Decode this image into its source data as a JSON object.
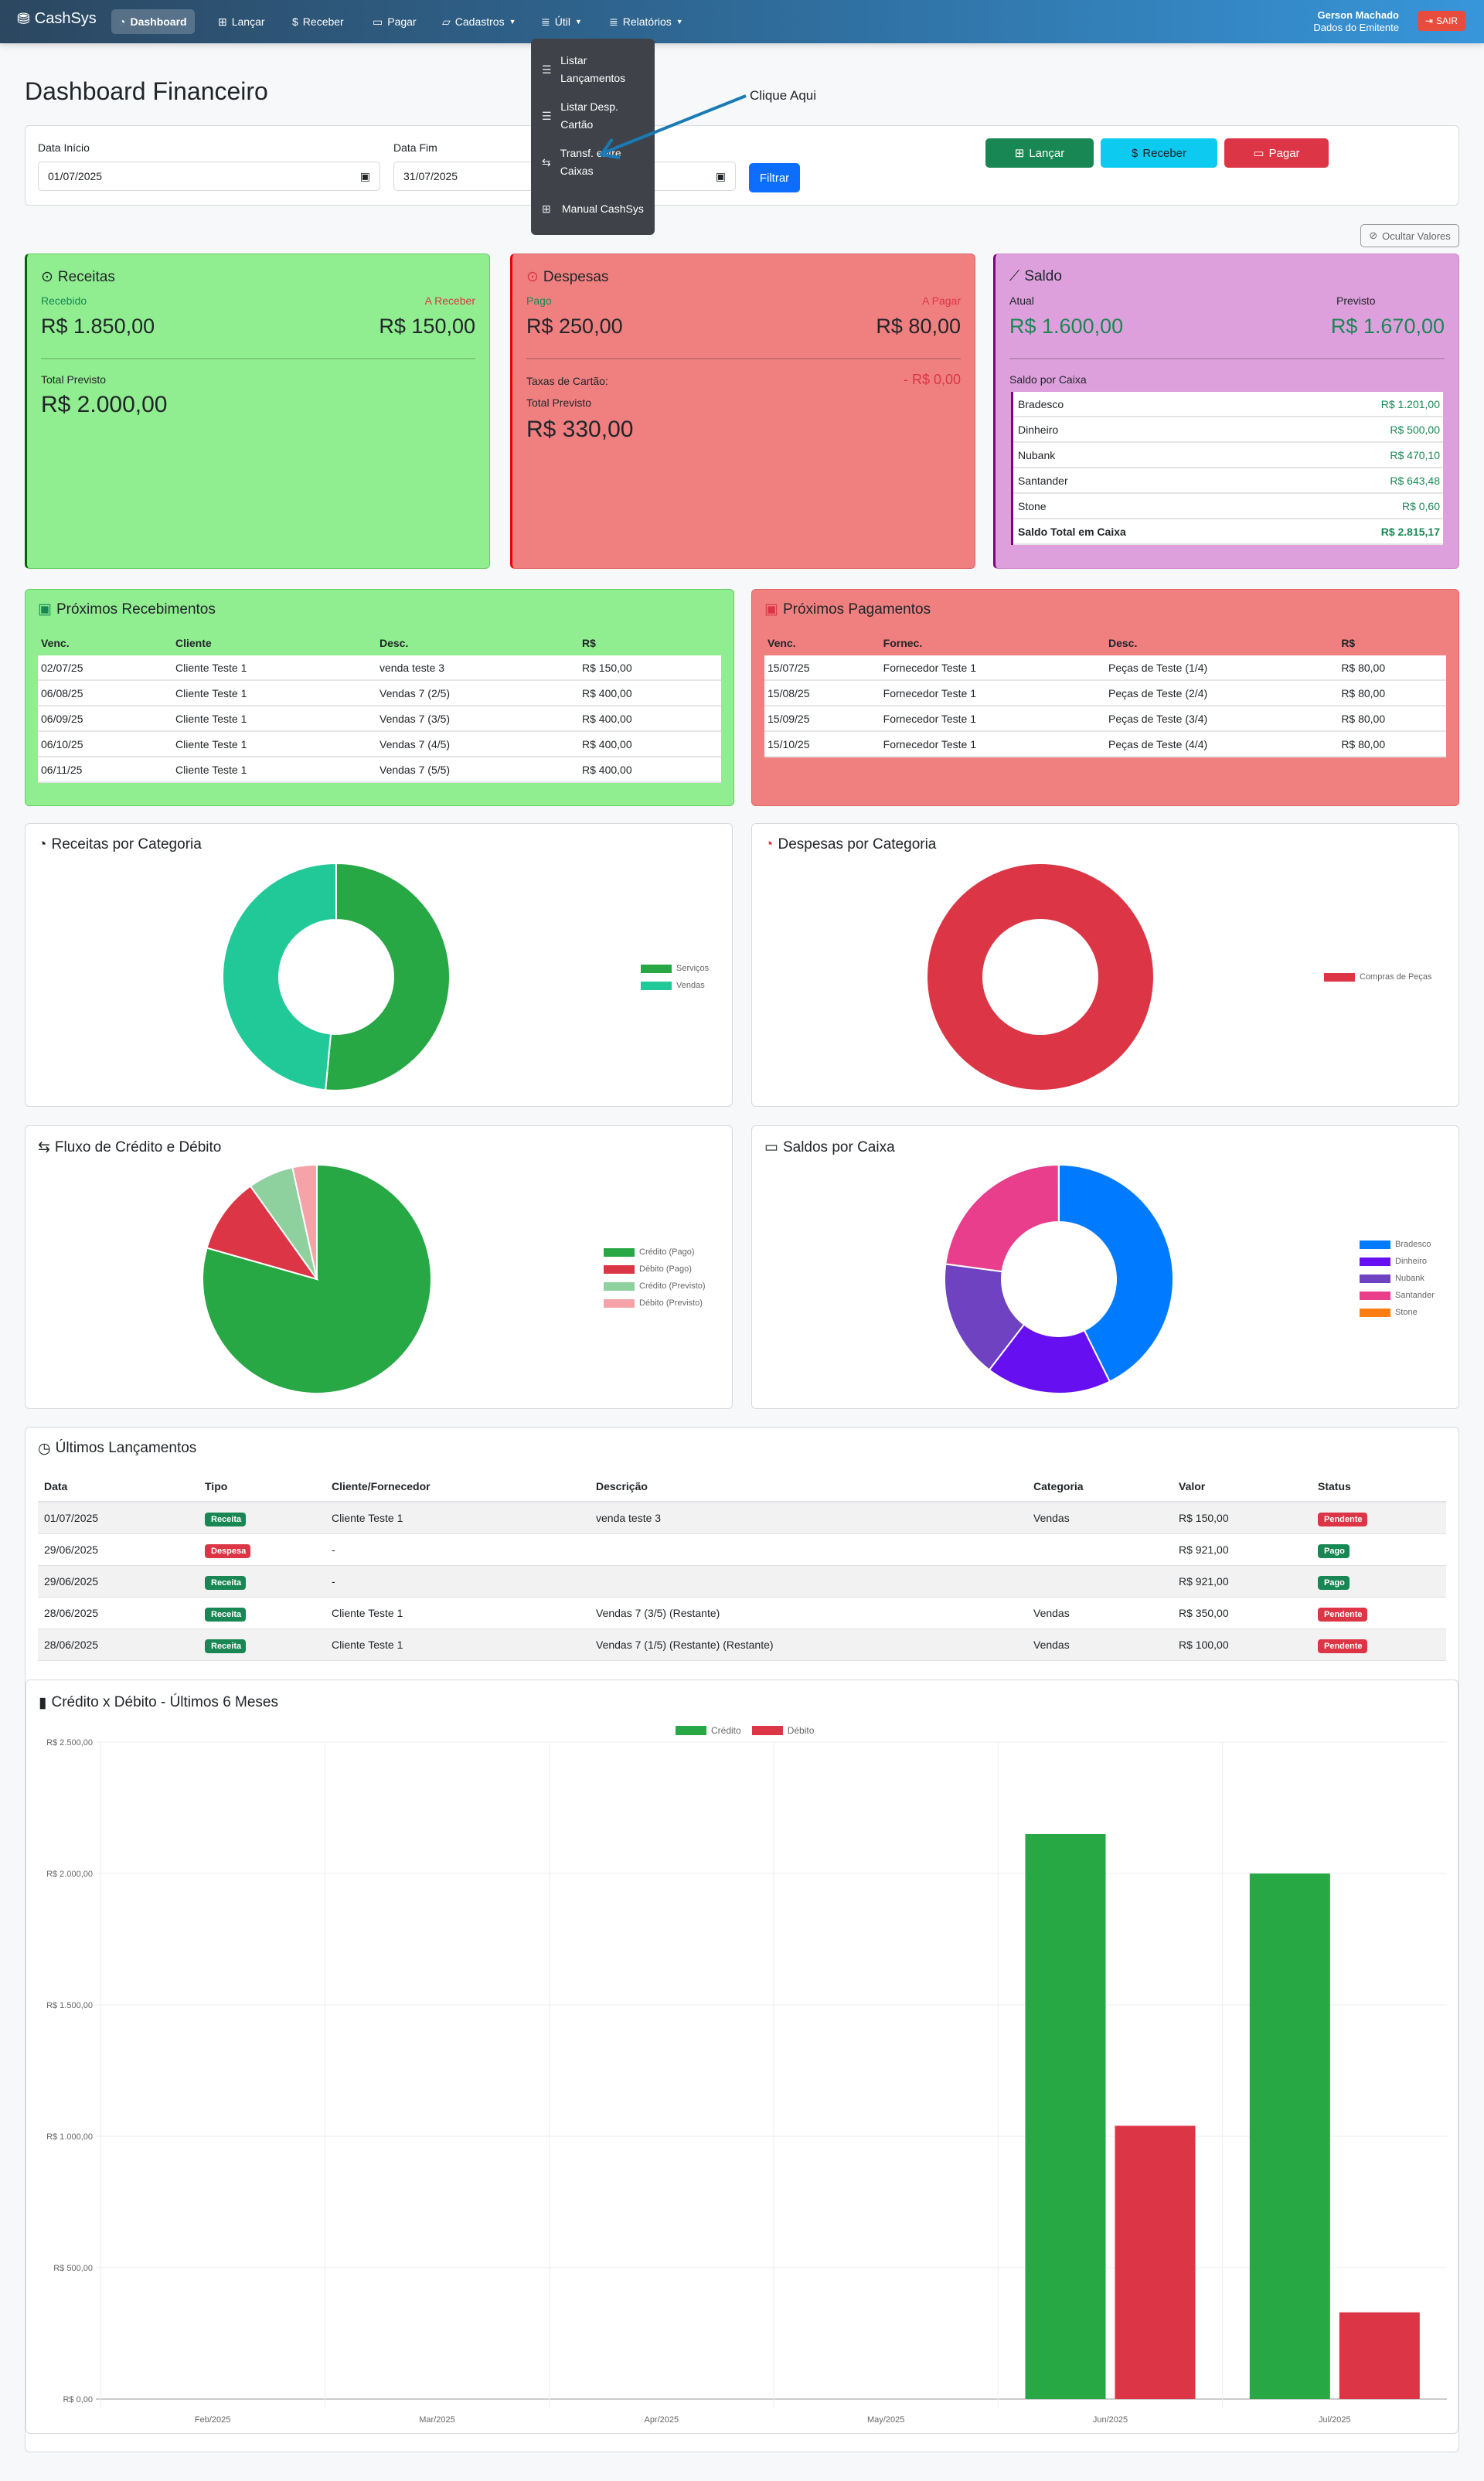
{
  "nav": {
    "brand": "CashSys",
    "items": [
      "Dashboard",
      "Lançar",
      "Receber",
      "Pagar",
      "Cadastros",
      "Útil",
      "Relatórios"
    ],
    "user": "Gerson Machado",
    "emitente": "Dados do Emitente",
    "logout": "SAIR"
  },
  "dropdown": [
    "Listar Lançamentos",
    "Listar Desp. Cartão",
    "Transf. entre Caixas",
    "Manual CashSys"
  ],
  "annotation": "Clique Aqui",
  "page_title": "Dashboard Financeiro",
  "filter": {
    "start_label": "Data Início",
    "start_value": "01/07/2025",
    "end_label": "Data Fim",
    "end_value": "31/07/2025",
    "filter_button": "Filtrar",
    "lancar": "Lançar",
    "receber": "Receber",
    "pagar": "Pagar"
  },
  "hide_values": "Ocultar Valores",
  "receitas": {
    "title": "Receitas",
    "recebido_label": "Recebido",
    "recebido": "R$ 1.850,00",
    "areceber_label": "A Receber",
    "areceber": "R$ 150,00",
    "total_label": "Total Previsto",
    "total": "R$ 2.000,00"
  },
  "despesas": {
    "title": "Despesas",
    "pago_label": "Pago",
    "pago": "R$ 250,00",
    "apagar_label": "A Pagar",
    "apagar": "R$ 80,00",
    "taxas_label": "Taxas de Cartão:",
    "taxas": "- R$ 0,00",
    "total_label": "Total Previsto",
    "total": "R$ 330,00"
  },
  "saldo": {
    "title": "Saldo",
    "atual_label": "Atual",
    "atual": "R$ 1.600,00",
    "previsto_label": "Previsto",
    "previsto": "R$ 1.670,00",
    "caixa_label": "Saldo por Caixa",
    "caixas": [
      [
        "Bradesco",
        "R$ 1.201,00"
      ],
      [
        "Dinheiro",
        "R$ 500,00"
      ],
      [
        "Nubank",
        "R$ 470,10"
      ],
      [
        "Santander",
        "R$ 643,48"
      ],
      [
        "Stone",
        "R$ 0,60"
      ],
      [
        "Saldo Total em Caixa",
        "R$ 2.815,17"
      ]
    ]
  },
  "recebimentos": {
    "title": "Próximos Recebimentos",
    "headers": [
      "Venc.",
      "Cliente",
      "Desc.",
      "R$"
    ],
    "rows": [
      [
        "02/07/25",
        "Cliente Teste 1",
        "venda teste 3",
        "R$ 150,00"
      ],
      [
        "06/08/25",
        "Cliente Teste 1",
        "Vendas 7 (2/5)",
        "R$ 400,00"
      ],
      [
        "06/09/25",
        "Cliente Teste 1",
        "Vendas 7 (3/5)",
        "R$ 400,00"
      ],
      [
        "06/10/25",
        "Cliente Teste 1",
        "Vendas 7 (4/5)",
        "R$ 400,00"
      ],
      [
        "06/11/25",
        "Cliente Teste 1",
        "Vendas 7 (5/5)",
        "R$ 400,00"
      ]
    ]
  },
  "pagamentos": {
    "title": "Próximos Pagamentos",
    "headers": [
      "Venc.",
      "Fornec.",
      "Desc.",
      "R$"
    ],
    "rows": [
      [
        "15/07/25",
        "Fornecedor Teste 1",
        "Peças de Teste (1/4)",
        "R$ 80,00"
      ],
      [
        "15/08/25",
        "Fornecedor Teste 1",
        "Peças de Teste (2/4)",
        "R$ 80,00"
      ],
      [
        "15/09/25",
        "Fornecedor Teste 1",
        "Peças de Teste (3/4)",
        "R$ 80,00"
      ],
      [
        "15/10/25",
        "Fornecedor Teste 1",
        "Peças de Teste (4/4)",
        "R$ 80,00"
      ]
    ]
  },
  "ultimos": {
    "title": "Últimos Lançamentos",
    "headers": [
      "Data",
      "Tipo",
      "Cliente/Fornecedor",
      "Descrição",
      "Categoria",
      "Valor",
      "Status"
    ],
    "rows": [
      [
        "01/07/2025",
        "Receita",
        "Cliente Teste 1",
        "venda teste 3",
        "Vendas",
        "R$ 150,00",
        "Pendente"
      ],
      [
        "29/06/2025",
        "Despesa",
        "-",
        "",
        "",
        "R$ 921,00",
        "Pago"
      ],
      [
        "29/06/2025",
        "Receita",
        "-",
        "",
        "",
        "R$ 921,00",
        "Pago"
      ],
      [
        "28/06/2025",
        "Receita",
        "Cliente Teste 1",
        "Vendas 7 (3/5) (Restante)",
        "Vendas",
        "R$ 350,00",
        "Pendente"
      ],
      [
        "28/06/2025",
        "Receita",
        "Cliente Teste 1",
        "Vendas 7 (1/5) (Restante) (Restante)",
        "Vendas",
        "R$ 100,00",
        "Pendente"
      ]
    ]
  },
  "colors": {
    "receita": "#198754",
    "despesa": "#dc3545",
    "pendente": "#dc3545",
    "pago": "#198754"
  },
  "chart_data": [
    {
      "type": "pie",
      "donut": true,
      "title": "Receitas por Categoria",
      "labels": [
        "Serviços",
        "Vendas"
      ],
      "values": [
        1030,
        970
      ],
      "colors": [
        "#28a745",
        "#20c997"
      ]
    },
    {
      "type": "pie",
      "donut": true,
      "title": "Despesas por Categoria",
      "labels": [
        "Compras de Peças"
      ],
      "values": [
        330
      ],
      "colors": [
        "#dc3545"
      ]
    },
    {
      "type": "pie",
      "donut": false,
      "title": "Fluxo de Crédito e Débito",
      "labels": [
        "Crédito (Pago)",
        "Débito (Pago)",
        "Crédito (Previsto)",
        "Débito (Previsto)"
      ],
      "values": [
        1850,
        250,
        150,
        80
      ],
      "colors": [
        "#28a745",
        "#dc3545",
        "#8fd19e",
        "#f5a3a9"
      ]
    },
    {
      "type": "pie",
      "donut": true,
      "title": "Saldos por Caixa",
      "labels": [
        "Bradesco",
        "Dinheiro",
        "Nubank",
        "Santander",
        "Stone"
      ],
      "values": [
        1201,
        500,
        470.1,
        643.48,
        0.6
      ],
      "colors": [
        "#007bff",
        "#6610f2",
        "#6f42c1",
        "#e83e8c",
        "#fd7e14"
      ]
    },
    {
      "type": "bar",
      "title": "Crédito x Débito - Últimos 6 Meses",
      "categories": [
        "Feb/2025",
        "Mar/2025",
        "Apr/2025",
        "May/2025",
        "Jun/2025",
        "Jul/2025"
      ],
      "series": [
        {
          "name": "Crédito",
          "values": [
            0,
            0,
            0,
            0,
            2150,
            2000
          ],
          "color": "#28a745"
        },
        {
          "name": "Débito",
          "values": [
            0,
            0,
            0,
            0,
            1040,
            330
          ],
          "color": "#dc3545"
        }
      ],
      "ylim": [
        0,
        2500
      ],
      "yticks": [
        "R$ 0,00",
        "R$ 500,00",
        "R$ 1.000,00",
        "R$ 1.500,00",
        "R$ 2.000,00",
        "R$ 2.500,00"
      ],
      "legend": "top"
    }
  ]
}
